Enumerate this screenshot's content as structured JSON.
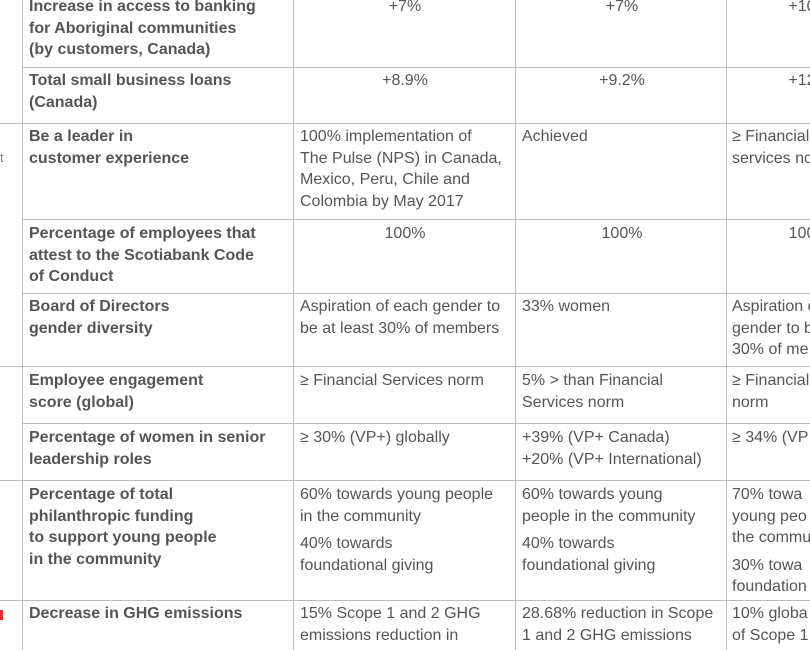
{
  "rows": [
    {
      "metric": [
        "Increase in access to banking",
        "for Aboriginal communities",
        "(by customers, Canada)"
      ],
      "target": "+7%",
      "result": "+7%",
      "next": "+10"
    },
    {
      "metric": [
        "Total small business loans",
        "(Canada)"
      ],
      "target": "+8.9%",
      "result": "+9.2%",
      "next": "+12"
    },
    {
      "metric": [
        "Be a leader in",
        "customer experience"
      ],
      "target": [
        "100% implementation of",
        "The Pulse (NPS) in Canada,",
        "Mexico, Peru, Chile and",
        "Colombia by May 2017"
      ],
      "result": "Achieved",
      "next": [
        "≥ Financial",
        "services nor"
      ]
    },
    {
      "metric": [
        "Percentage of employees that",
        "attest to the Scotiabank Code",
        "of Conduct"
      ],
      "target": "100%",
      "result": "100%",
      "next": "100"
    },
    {
      "metric": [
        "Board of Directors",
        "gender diversity"
      ],
      "target": [
        "Aspiration of each gender to",
        "be at least 30% of members"
      ],
      "result": "33% women",
      "next": [
        "Aspiration o",
        "gender to b",
        "30% of me"
      ]
    },
    {
      "metric": [
        "Employee engagement",
        "score (global)"
      ],
      "target": "≥ Financial Services norm",
      "result": [
        "5% > than Financial",
        "Services norm"
      ],
      "next": [
        "≥ Financial",
        "norm"
      ]
    },
    {
      "metric": [
        "Percentage of women in senior",
        "leadership roles"
      ],
      "target": "≥ 30% (VP+) globally",
      "result": [
        "+39% (VP+ Canada)",
        "+20% (VP+ International)"
      ],
      "next": "≥ 34% (VP"
    },
    {
      "metric": [
        "Percentage of total",
        "philanthropic funding",
        "to support young people",
        "in the community"
      ],
      "target_a": [
        "60% towards young people",
        "in the community"
      ],
      "target_b": [
        "40% towards",
        "foundational giving"
      ],
      "result_a": [
        "60% towards young",
        "people in the community"
      ],
      "result_b": [
        "40% towards",
        "foundational giving"
      ],
      "next_a": [
        "70% towa",
        "young peo",
        "the commu"
      ],
      "next_b": [
        "30% towa",
        "foundation"
      ]
    },
    {
      "metric": [
        "Decrease in GHG emissions"
      ],
      "target": [
        "15% Scope 1 and 2 GHG",
        "emissions reduction in"
      ],
      "result": [
        "28.68% reduction in Scope",
        "1 and 2 GHG emissions"
      ],
      "next": [
        "10% globa",
        "of Scope 1"
      ]
    }
  ],
  "edge_stub": "t"
}
